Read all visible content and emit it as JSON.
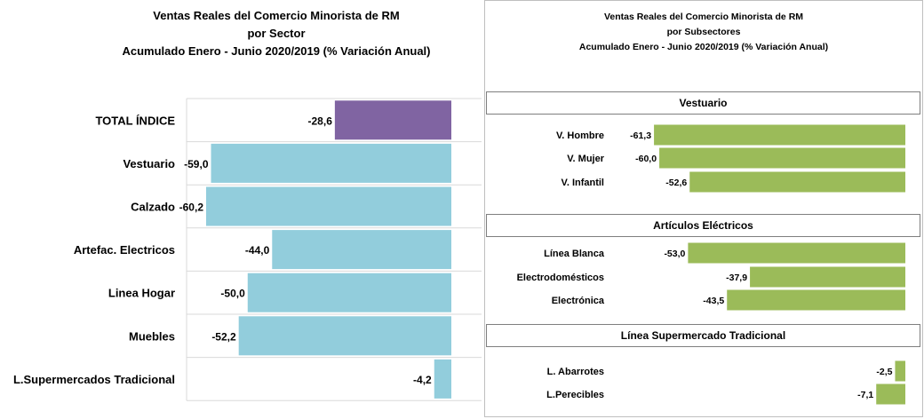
{
  "chart_data": [
    {
      "type": "bar",
      "orientation": "horizontal",
      "title": "Ventas Reales del Comercio Minorista de RM",
      "subtitle_lines": [
        "por Sector",
        "Acumulado Enero - Junio 2020/2019 (% Variación Anual)"
      ],
      "categories": [
        "TOTAL ÍNDICE",
        "Vestuario",
        "Calzado",
        "Artefac. Electricos",
        "Linea Hogar",
        "Muebles",
        "L.Supermercados Tradicional"
      ],
      "values": [
        -28.6,
        -59.0,
        -60.2,
        -44.0,
        -50.0,
        -52.2,
        -4.2
      ],
      "value_labels": [
        "-28,6",
        "-59,0",
        "-60,2",
        "-44,0",
        "-50,0",
        "-52,2",
        "-4,2"
      ],
      "colors": [
        "#8064a2",
        "#92cddc",
        "#92cddc",
        "#92cddc",
        "#92cddc",
        "#92cddc",
        "#92cddc"
      ],
      "xlim": [
        -65,
        0
      ],
      "grid": true,
      "legend": "none"
    },
    {
      "type": "bar",
      "orientation": "horizontal",
      "title": "Ventas Reales del Comercio Minorista de RM",
      "subtitle_lines": [
        "por Subsectores",
        "Acumulado Enero - Junio 2020/2019 (% Variación Anual)"
      ],
      "groups": [
        {
          "name": "Vestuario",
          "categories": [
            "V. Hombre",
            "V. Mujer",
            "V. Infantil"
          ],
          "values": [
            -61.3,
            -60.0,
            -52.6
          ],
          "value_labels": [
            "-61,3",
            "-60,0",
            "-52,6"
          ]
        },
        {
          "name": "Artículos Eléctricos",
          "categories": [
            "Línea Blanca",
            "Electrodomésticos",
            "Electrónica"
          ],
          "values": [
            -53.0,
            -37.9,
            -43.5
          ],
          "value_labels": [
            "-53,0",
            "-37,9",
            "-43,5"
          ]
        },
        {
          "name": "Línea  Supermercado Tradicional",
          "categories": [
            "L. Abarrotes",
            "L.Perecibles"
          ],
          "values": [
            -2.5,
            -7.1
          ],
          "value_labels": [
            "-2,5",
            "-7,1"
          ]
        }
      ],
      "color": "#9bbb59",
      "xlim": [
        -65,
        0
      ],
      "legend": "none"
    }
  ]
}
